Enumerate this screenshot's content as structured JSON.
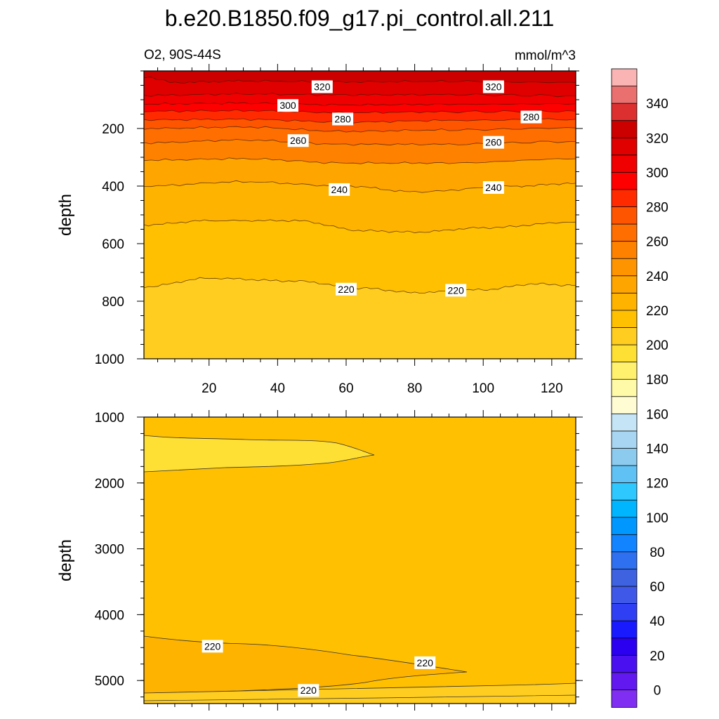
{
  "title": "b.e20.B1850.f09_g17.pi_control.all.211",
  "subtitle_left": "O2, 90S-44S",
  "units": "mmol/m^3",
  "colorbar": {
    "labels": [
      "340",
      "320",
      "300",
      "280",
      "260",
      "240",
      "220",
      "200",
      "180",
      "160",
      "140",
      "120",
      "100",
      "80",
      "60",
      "40",
      "20",
      "0"
    ],
    "colors": [
      "#fbb4b4",
      "#ea6f6f",
      "#dc2f2f",
      "#cd0000",
      "#e00000",
      "#f00000",
      "#ff0000",
      "#ff2a00",
      "#fe5500",
      "#fe6e00",
      "#fe8200",
      "#fe9500",
      "#fea500",
      "#feb300",
      "#fec000",
      "#fecd20",
      "#fedf34",
      "#fff16e",
      "#fffaa8",
      "#fffcd4",
      "#c5e5f6",
      "#a8d6f2",
      "#8ccbee",
      "#60c2f4",
      "#2ec8ff",
      "#00b5ff",
      "#0098ff",
      "#1284ff",
      "#2e70f0",
      "#3e62e0",
      "#3f58e8",
      "#2f3ff4",
      "#1a1aff",
      "#2b00f0",
      "#4a10ef",
      "#6219ef",
      "#7f2ef2"
    ]
  },
  "chart_data": [
    {
      "type": "contour",
      "panel": "upper",
      "xlim": [
        1,
        127
      ],
      "ylim": [
        1000,
        0
      ],
      "xticks": [
        "20",
        "40",
        "60",
        "80",
        "100",
        "120"
      ],
      "yticks": [
        "200",
        "400",
        "600",
        "800",
        "1000"
      ],
      "ylabel": "depth",
      "fill_bands": [
        {
          "level": 320,
          "color": "#cd0000"
        },
        {
          "level": 310,
          "color": "#e00000"
        },
        {
          "level": 300,
          "color": "#f00000"
        },
        {
          "level": 290,
          "color": "#ff0000"
        },
        {
          "level": 280,
          "color": "#ff2a00"
        },
        {
          "level": 270,
          "color": "#fe5500"
        },
        {
          "level": 260,
          "color": "#fe6e00"
        },
        {
          "level": 250,
          "color": "#fe8200"
        },
        {
          "level": 240,
          "color": "#fea500"
        },
        {
          "level": 230,
          "color": "#feb300"
        },
        {
          "level": 220,
          "color": "#fec000"
        },
        {
          "level": 210,
          "color": "#fecd20"
        }
      ],
      "contours": [
        {
          "level": 320,
          "depths": [
            [
              1,
              20
            ],
            [
              10,
              40
            ],
            [
              30,
              35
            ],
            [
              60,
              38
            ],
            [
              90,
              36
            ],
            [
              127,
              40
            ]
          ]
        },
        {
          "level": 310,
          "depths": [
            [
              1,
              85
            ],
            [
              30,
              80
            ],
            [
              60,
              83
            ],
            [
              90,
              82
            ],
            [
              127,
              86
            ]
          ]
        },
        {
          "level": 300,
          "depths": [
            [
              1,
              115
            ],
            [
              30,
              112
            ],
            [
              60,
              118
            ],
            [
              90,
              116
            ],
            [
              127,
              114
            ]
          ]
        },
        {
          "level": 290,
          "depths": [
            [
              1,
              140
            ],
            [
              30,
              138
            ],
            [
              60,
              145
            ],
            [
              90,
              142
            ],
            [
              127,
              140
            ]
          ]
        },
        {
          "level": 280,
          "depths": [
            [
              1,
              170
            ],
            [
              30,
              168
            ],
            [
              60,
              178
            ],
            [
              90,
              172
            ],
            [
              127,
              168
            ]
          ]
        },
        {
          "level": 270,
          "depths": [
            [
              1,
              200
            ],
            [
              30,
              195
            ],
            [
              60,
              210
            ],
            [
              90,
              205
            ],
            [
              127,
              198
            ]
          ]
        },
        {
          "level": 260,
          "depths": [
            [
              1,
              250
            ],
            [
              30,
              240
            ],
            [
              60,
              255
            ],
            [
              90,
              255
            ],
            [
              127,
              245
            ]
          ]
        },
        {
          "level": 250,
          "depths": [
            [
              1,
              310
            ],
            [
              30,
              305
            ],
            [
              60,
              320
            ],
            [
              90,
              320
            ],
            [
              127,
              305
            ]
          ]
        },
        {
          "level": 240,
          "depths": [
            [
              1,
              400
            ],
            [
              30,
              385
            ],
            [
              60,
              400
            ],
            [
              80,
              420
            ],
            [
              110,
              400
            ],
            [
              127,
              390
            ]
          ]
        },
        {
          "level": 230,
          "depths": [
            [
              1,
              535
            ],
            [
              20,
              520
            ],
            [
              45,
              520
            ],
            [
              65,
              555
            ],
            [
              80,
              560
            ],
            [
              100,
              545
            ],
            [
              127,
              525
            ]
          ]
        },
        {
          "level": 220,
          "depths": [
            [
              1,
              750
            ],
            [
              20,
              720
            ],
            [
              45,
              730
            ],
            [
              65,
              755
            ],
            [
              80,
              770
            ],
            [
              100,
              760
            ],
            [
              115,
              740
            ],
            [
              127,
              745
            ]
          ]
        }
      ],
      "contour_labels": [
        {
          "text": "320",
          "x": 53,
          "depth": 55
        },
        {
          "text": "300",
          "x": 43,
          "depth": 120
        },
        {
          "text": "320",
          "x": 103,
          "depth": 55
        },
        {
          "text": "280",
          "x": 59,
          "depth": 167
        },
        {
          "text": "280",
          "x": 114,
          "depth": 160
        },
        {
          "text": "260",
          "x": 46,
          "depth": 242
        },
        {
          "text": "260",
          "x": 103,
          "depth": 248
        },
        {
          "text": "240",
          "x": 58,
          "depth": 412
        },
        {
          "text": "240",
          "x": 103,
          "depth": 405
        },
        {
          "text": "220",
          "x": 60,
          "depth": 758
        },
        {
          "text": "220",
          "x": 92,
          "depth": 762
        }
      ]
    },
    {
      "type": "contour",
      "panel": "lower",
      "xlim": [
        1,
        127
      ],
      "ylim": [
        5350,
        1000
      ],
      "xticks": [
        "20",
        "40",
        "60",
        "80",
        "100",
        "120"
      ],
      "yticks": [
        "1000",
        "2000",
        "3000",
        "4000",
        "5000"
      ],
      "ylabel": "depth",
      "background_color": "#fec000",
      "regions": [
        {
          "level": 210,
          "color": "#fedf34",
          "name": "lens"
        },
        {
          "level": 230,
          "color": "#feb300",
          "name": "wedge"
        },
        {
          "level": 210,
          "color": "#fecd20",
          "name": "bottom-strip"
        }
      ],
      "contour_labels": [
        {
          "text": "220",
          "x": 21,
          "depth": 4480
        },
        {
          "text": "220",
          "x": 83,
          "depth": 4730
        },
        {
          "text": "220",
          "x": 49,
          "depth": 5150
        }
      ]
    }
  ]
}
